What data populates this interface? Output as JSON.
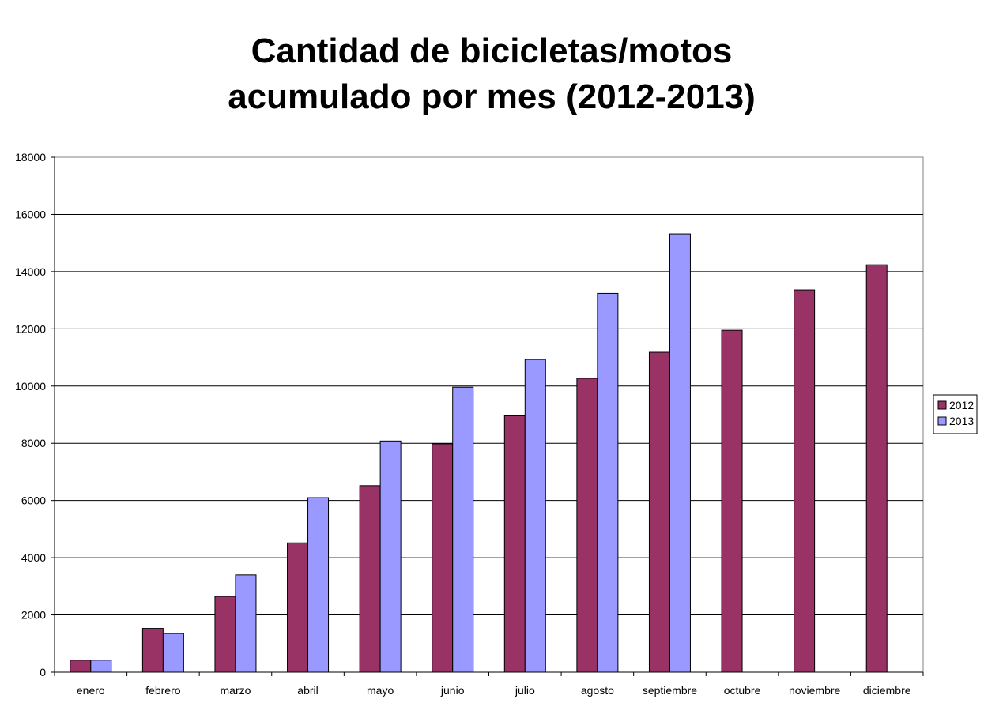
{
  "chart_data": {
    "type": "bar",
    "title": [
      "Cantidad de bicicletas/motos",
      "acumulado por mes (2012-2013)"
    ],
    "xlabel": "",
    "ylabel": "",
    "categories": [
      "enero",
      "febrero",
      "marzo",
      "abril",
      "mayo",
      "junio",
      "julio",
      "agosto",
      "septiembre",
      "octubre",
      "noviembre",
      "diciembre"
    ],
    "series": [
      {
        "name": "2012",
        "color": "#993366",
        "values": [
          420,
          1530,
          2650,
          4520,
          6520,
          7980,
          8960,
          10270,
          11180,
          11950,
          13360,
          14240
        ]
      },
      {
        "name": "2013",
        "color": "#9999ff",
        "values": [
          420,
          1350,
          3400,
          6100,
          8080,
          9960,
          10930,
          13240,
          15320,
          null,
          null,
          null
        ]
      }
    ],
    "ylim": [
      0,
      18000
    ],
    "yticks": [
      0,
      2000,
      4000,
      6000,
      8000,
      10000,
      12000,
      14000,
      16000,
      18000
    ],
    "grid": true,
    "legend_position": "right"
  }
}
